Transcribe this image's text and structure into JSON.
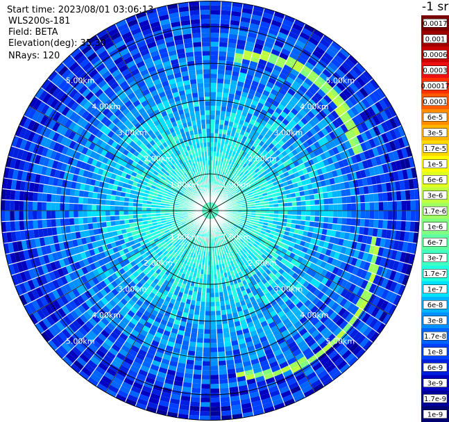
{
  "header": {
    "start_time": "Start time: 2023/08/01 03:06:13",
    "instrument": "WLS200s-181",
    "field": "Field: BETA",
    "elevation": "Elevation(deg): 35.30",
    "nrays": "NRays: 120"
  },
  "legend": {
    "title": "-1 sr",
    "entries": [
      {
        "label": "0.0017",
        "color": "#7a0000"
      },
      {
        "label": "0.001",
        "color": "#a00000"
      },
      {
        "label": "0.0006",
        "color": "#c80000"
      },
      {
        "label": "0.0003",
        "color": "#ee1010"
      },
      {
        "label": "0.00017",
        "color": "#ff3000"
      },
      {
        "label": "0.0001",
        "color": "#ff5a00"
      },
      {
        "label": "6e-5",
        "color": "#ff8c00"
      },
      {
        "label": "3e-5",
        "color": "#ffb400"
      },
      {
        "label": "1.7e-5",
        "color": "#ffd800"
      },
      {
        "label": "1e-5",
        "color": "#ffff00"
      },
      {
        "label": "6e-6",
        "color": "#e0ff20"
      },
      {
        "label": "3e-6",
        "color": "#c0ff40"
      },
      {
        "label": "1.7e-6",
        "color": "#a0ff60"
      },
      {
        "label": "1e-6",
        "color": "#80ff80"
      },
      {
        "label": "6e-7",
        "color": "#60ffa0"
      },
      {
        "label": "3e-7",
        "color": "#40ffc0"
      },
      {
        "label": "1.7e-7",
        "color": "#20ffe0"
      },
      {
        "label": "1e-7",
        "color": "#00e0ff"
      },
      {
        "label": "6e-8",
        "color": "#00b4ff"
      },
      {
        "label": "3e-8",
        "color": "#0090ff"
      },
      {
        "label": "1.7e-8",
        "color": "#0064ff"
      },
      {
        "label": "1e-8",
        "color": "#0040ff"
      },
      {
        "label": "6e-9",
        "color": "#0020e0"
      },
      {
        "label": "3e-9",
        "color": "#0000c0"
      },
      {
        "label": "1.7e-9",
        "color": "#00009a"
      },
      {
        "label": "1e-9",
        "color": "#000070"
      }
    ]
  },
  "chart_data": {
    "type": "heatmap",
    "projection": "polar (PPI)",
    "nrays": 120,
    "range_rings_km": [
      1,
      2,
      3,
      4,
      5
    ],
    "ring_labels": [
      "1.00km",
      "2.00km",
      "3.00km",
      "4.00km",
      "5.00km"
    ],
    "max_range_km": 5.7,
    "radial_lines_every_deg": 30,
    "color_scale": "log",
    "value_range": [
      1e-09,
      0.0017
    ],
    "features": [
      {
        "description": "enhanced return band",
        "range_km": [
          3.7,
          4.8
        ],
        "azimuth_deg": [
          10,
          70
        ],
        "value": 1.7e-06
      },
      {
        "description": "enhanced return band",
        "range_km": [
          4.2,
          4.9
        ],
        "azimuth_deg": [
          100,
          170
        ],
        "value": 1.7e-06
      },
      {
        "description": "near-range field",
        "range_km": [
          0,
          2.0
        ],
        "value": 1.7e-07
      }
    ]
  }
}
